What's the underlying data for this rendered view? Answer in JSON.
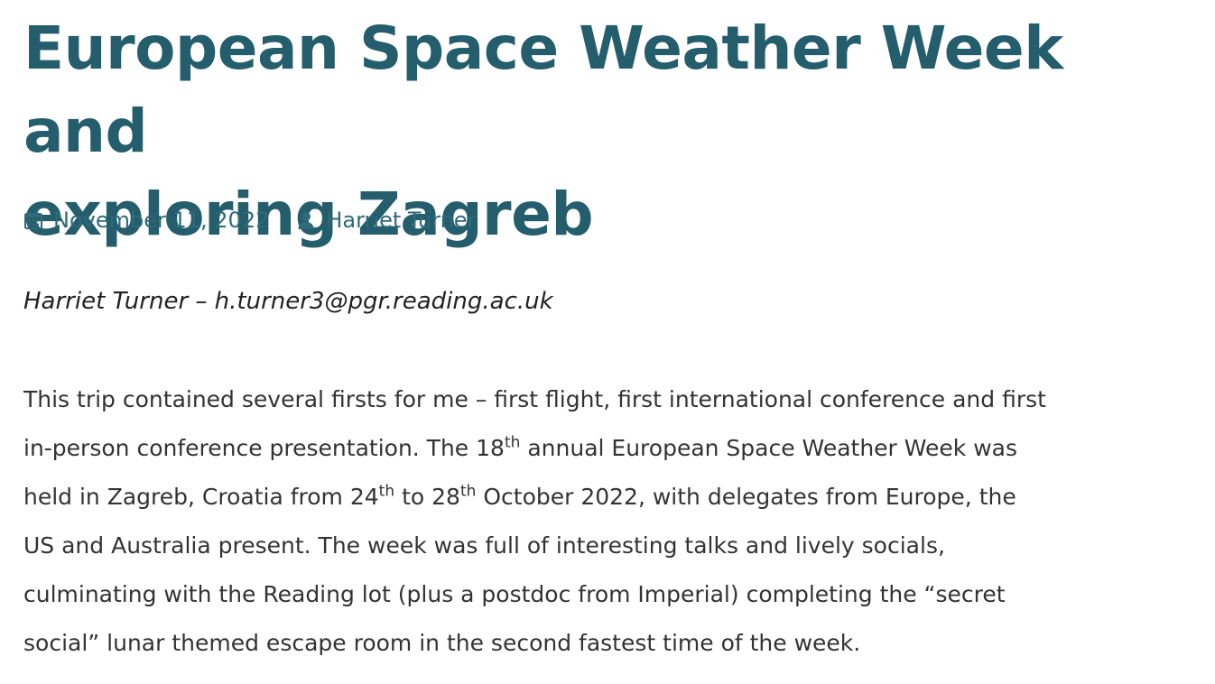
{
  "article": {
    "title_line1": "European Space Weather Week and",
    "title_line2": "exploring Zagreb",
    "meta": {
      "date": "November 11, 2022",
      "date_icon": "calendar-icon",
      "author": "Harriet Turner",
      "author_icon": "user-icon",
      "accent_color": "#245d6b"
    },
    "byline": "Harriet Turner – h.turner3@pgr.reading.ac.uk",
    "paragraph": {
      "l1": "This trip contained several firsts for me – first flight, first international conference and first",
      "l2a": "in-person conference presentation. The 18",
      "l2sup": "th",
      "l2b": " annual European Space Weather Week was",
      "l3a": "held in Zagreb, Croatia from 24",
      "l3sup1": "th",
      "l3b": " to 28",
      "l3sup2": "th",
      "l3c": " October 2022, with delegates from Europe, the",
      "l4": "US and Australia present. The week was full of interesting talks and lively socials,",
      "l5": "culminating with the Reading lot (plus a postdoc from Imperial) completing the “secret",
      "l6": "social” lunar themed escape room in the second fastest time of the week."
    }
  }
}
